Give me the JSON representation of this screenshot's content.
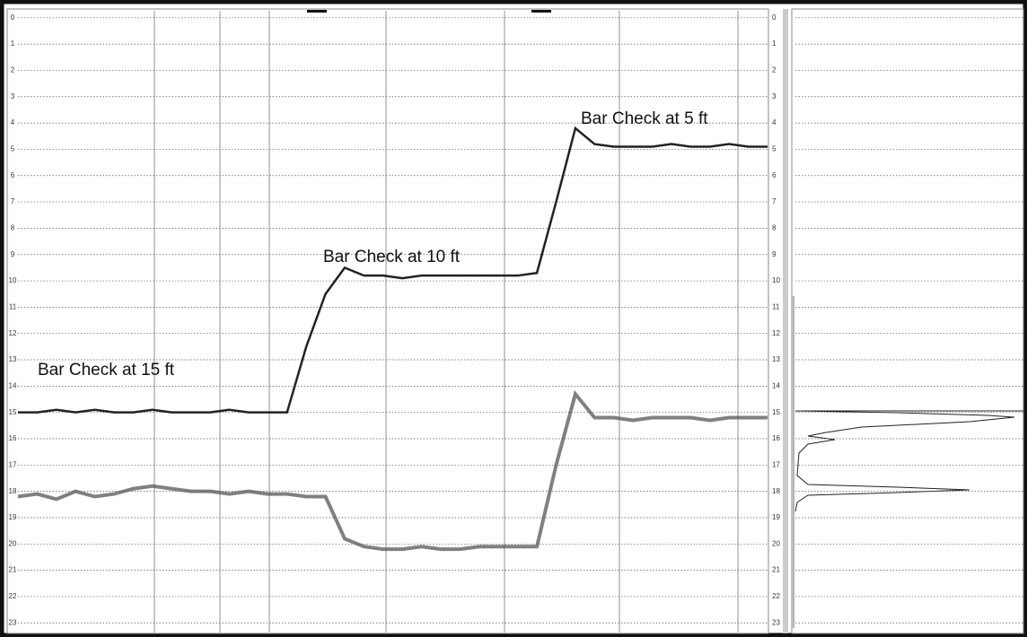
{
  "chart_data": {
    "type": "line",
    "annotations": [
      "Bar Check at 15 ft",
      "Bar Check at 10 ft",
      "Bar Check at 5 ft"
    ],
    "categories": [
      null,
      null,
      null,
      null,
      null,
      null,
      null,
      null,
      null,
      null,
      null,
      null,
      null,
      null,
      null,
      null,
      null,
      null,
      null,
      null,
      null,
      null,
      null,
      null,
      null,
      null,
      null,
      null,
      null,
      null,
      null,
      null,
      null,
      null,
      null,
      null,
      null,
      null,
      null,
      null
    ],
    "series": [
      {
        "color": "#222222",
        "values": [
          15.0,
          15.0,
          14.9,
          15.0,
          14.9,
          15.0,
          15.0,
          14.9,
          15.0,
          15.0,
          15.0,
          14.9,
          15.0,
          15.0,
          15.0,
          12.5,
          10.5,
          9.5,
          9.8,
          9.8,
          9.9,
          9.8,
          9.8,
          9.8,
          9.8,
          9.8,
          9.8,
          9.7,
          7.0,
          4.2,
          4.8,
          4.9,
          4.9,
          4.9,
          4.8,
          4.9,
          4.9,
          4.8,
          4.9,
          4.9
        ]
      },
      {
        "color": "#555555",
        "values": [
          18.2,
          18.1,
          18.3,
          18.0,
          18.2,
          18.1,
          17.9,
          17.8,
          17.9,
          18.0,
          18.0,
          18.1,
          18.0,
          18.1,
          18.1,
          18.2,
          18.2,
          19.8,
          20.1,
          20.2,
          20.2,
          20.1,
          20.2,
          20.2,
          20.1,
          20.1,
          20.1,
          20.1,
          17.0,
          14.3,
          15.2,
          15.2,
          15.3,
          15.2,
          15.2,
          15.2,
          15.3,
          15.2,
          15.2,
          15.2
        ]
      }
    ],
    "ylim": [
      -0.3,
      23.4
    ],
    "yticks": [
      0,
      1,
      2,
      3,
      4,
      5,
      6,
      7,
      8,
      9,
      10,
      11,
      12,
      13,
      14,
      15,
      16,
      17,
      18,
      19,
      20,
      21,
      22,
      23
    ],
    "y_inverted": true,
    "grid": true
  }
}
